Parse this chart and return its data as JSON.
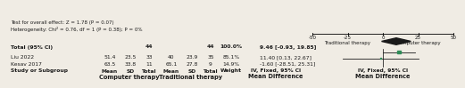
{
  "studies": [
    "Kesav 2017",
    "Liu 2022"
  ],
  "comp_mean": [
    63.5,
    51.4
  ],
  "comp_sd": [
    33.8,
    23.5
  ],
  "comp_total": [
    11,
    33
  ],
  "trad_mean": [
    65.1,
    40
  ],
  "trad_sd": [
    27.8,
    23.9
  ],
  "trad_total": [
    9,
    35
  ],
  "weights": [
    "14.9%",
    "85.1%"
  ],
  "md": [
    -1.6,
    11.4
  ],
  "ci_low": [
    -28.51,
    0.13
  ],
  "ci_high": [
    25.31,
    22.67
  ],
  "total_n_comp": 44,
  "total_n_trad": 44,
  "total_weight": "100.0%",
  "total_md": 9.46,
  "total_ci_low": -0.93,
  "total_ci_high": 19.85,
  "heterogeneity_text": "Heterogeneity: Chi² = 0.76, df = 1 (P = 0.38); P = 0%",
  "test_text": "Test for overall effect: Z = 1.78 (P = 0.07)",
  "square_color": "#2e8b57",
  "diamond_color": "#1a1a1a",
  "line_color": "#1a1a1a",
  "bg_color": "#f0ece4",
  "text_color": "#1a1a1a",
  "axis_min": -50,
  "axis_max": 50,
  "axis_ticks": [
    -50,
    -25,
    0,
    25,
    50
  ],
  "xlabel_left": "Traditional therapy",
  "xlabel_right": "Computer therapy",
  "weights_num": [
    14.9,
    85.1
  ]
}
